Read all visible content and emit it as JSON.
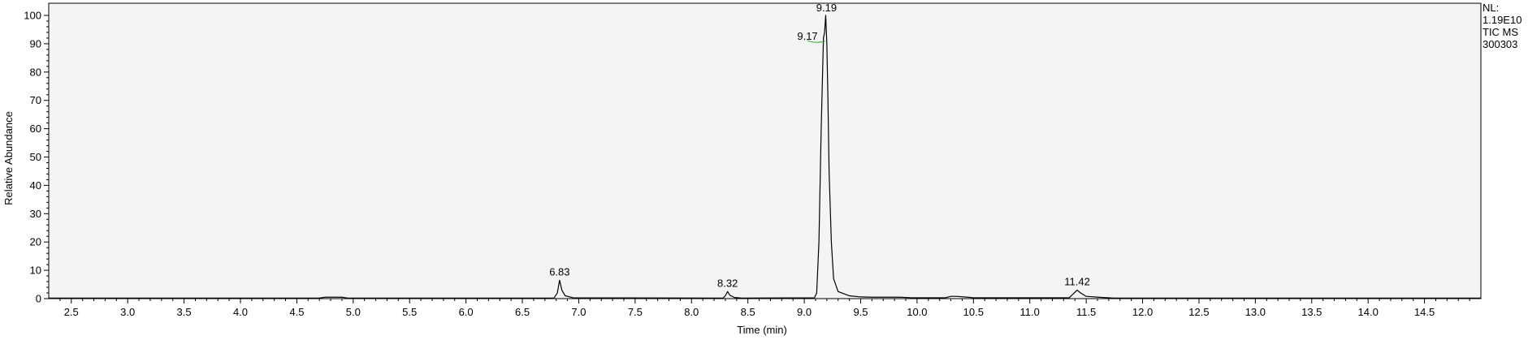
{
  "chart_data": {
    "type": "line",
    "title": "",
    "xlabel": "Time (min)",
    "ylabel": "Relative Abundance",
    "xlim": [
      2.3,
      15.0
    ],
    "ylim": [
      0,
      100
    ],
    "grid": false,
    "x_ticks": [
      "2.5",
      "3.0",
      "3.5",
      "4.0",
      "4.5",
      "5.0",
      "5.5",
      "6.0",
      "6.5",
      "7.0",
      "7.5",
      "8.0",
      "8.5",
      "9.0",
      "9.5",
      "10.0",
      "10.5",
      "11.0",
      "11.5",
      "12.0",
      "12.5",
      "13.0",
      "13.5",
      "14.0",
      "14.5"
    ],
    "x_tick_values": [
      2.5,
      3.0,
      3.5,
      4.0,
      4.5,
      5.0,
      5.5,
      6.0,
      6.5,
      7.0,
      7.5,
      8.0,
      8.5,
      9.0,
      9.5,
      10.0,
      10.5,
      11.0,
      11.5,
      12.0,
      12.5,
      13.0,
      13.5,
      14.0,
      14.5
    ],
    "y_ticks": [
      "0",
      "10",
      "20",
      "30",
      "40",
      "50",
      "60",
      "70",
      "80",
      "90",
      "100"
    ],
    "y_tick_values": [
      0,
      10,
      20,
      30,
      40,
      50,
      60,
      70,
      80,
      90,
      100
    ],
    "info_lines": [
      "NL:",
      "1.19E10",
      "TIC  MS",
      "300303"
    ],
    "peak_labels": [
      {
        "text": "6.83",
        "x": 6.83,
        "y": 6.5
      },
      {
        "text": "8.32",
        "x": 8.32,
        "y": 2.5
      },
      {
        "text": "9.19",
        "x": 9.19,
        "y": 100
      },
      {
        "text": "9.17",
        "x": 9.17,
        "y": 92
      },
      {
        "text": "11.42",
        "x": 11.42,
        "y": 3
      }
    ],
    "series": [
      {
        "color": "#000000",
        "points": [
          [
            2.3,
            0.2
          ],
          [
            4.7,
            0.2
          ],
          [
            4.75,
            0.5
          ],
          [
            4.9,
            0.5
          ],
          [
            4.95,
            0.2
          ],
          [
            6.78,
            0.2
          ],
          [
            6.81,
            2.0
          ],
          [
            6.83,
            6.5
          ],
          [
            6.85,
            3.0
          ],
          [
            6.88,
            1.0
          ],
          [
            6.95,
            0.3
          ],
          [
            8.28,
            0.2
          ],
          [
            8.3,
            1.0
          ],
          [
            8.32,
            2.5
          ],
          [
            8.34,
            1.2
          ],
          [
            8.38,
            0.4
          ],
          [
            8.45,
            0.2
          ],
          [
            9.09,
            0.3
          ],
          [
            9.11,
            2.0
          ],
          [
            9.13,
            20
          ],
          [
            9.15,
            60
          ],
          [
            9.17,
            92
          ],
          [
            9.18,
            94
          ],
          [
            9.19,
            100
          ],
          [
            9.2,
            90
          ],
          [
            9.21,
            70
          ],
          [
            9.22,
            45
          ],
          [
            9.24,
            20
          ],
          [
            9.26,
            7
          ],
          [
            9.3,
            2.5
          ],
          [
            9.4,
            1.0
          ],
          [
            9.5,
            0.6
          ],
          [
            9.6,
            0.5
          ],
          [
            9.85,
            0.5
          ],
          [
            9.95,
            0.3
          ],
          [
            10.25,
            0.3
          ],
          [
            10.3,
            0.8
          ],
          [
            10.35,
            0.8
          ],
          [
            10.45,
            0.5
          ],
          [
            10.5,
            0.3
          ],
          [
            11.35,
            0.3
          ],
          [
            11.38,
            1.5
          ],
          [
            11.42,
            3.0
          ],
          [
            11.45,
            2.0
          ],
          [
            11.5,
            0.8
          ],
          [
            11.65,
            0.4
          ],
          [
            11.75,
            0.2
          ],
          [
            15.0,
            0.2
          ]
        ]
      }
    ],
    "annotation_color": "#22aa22"
  }
}
